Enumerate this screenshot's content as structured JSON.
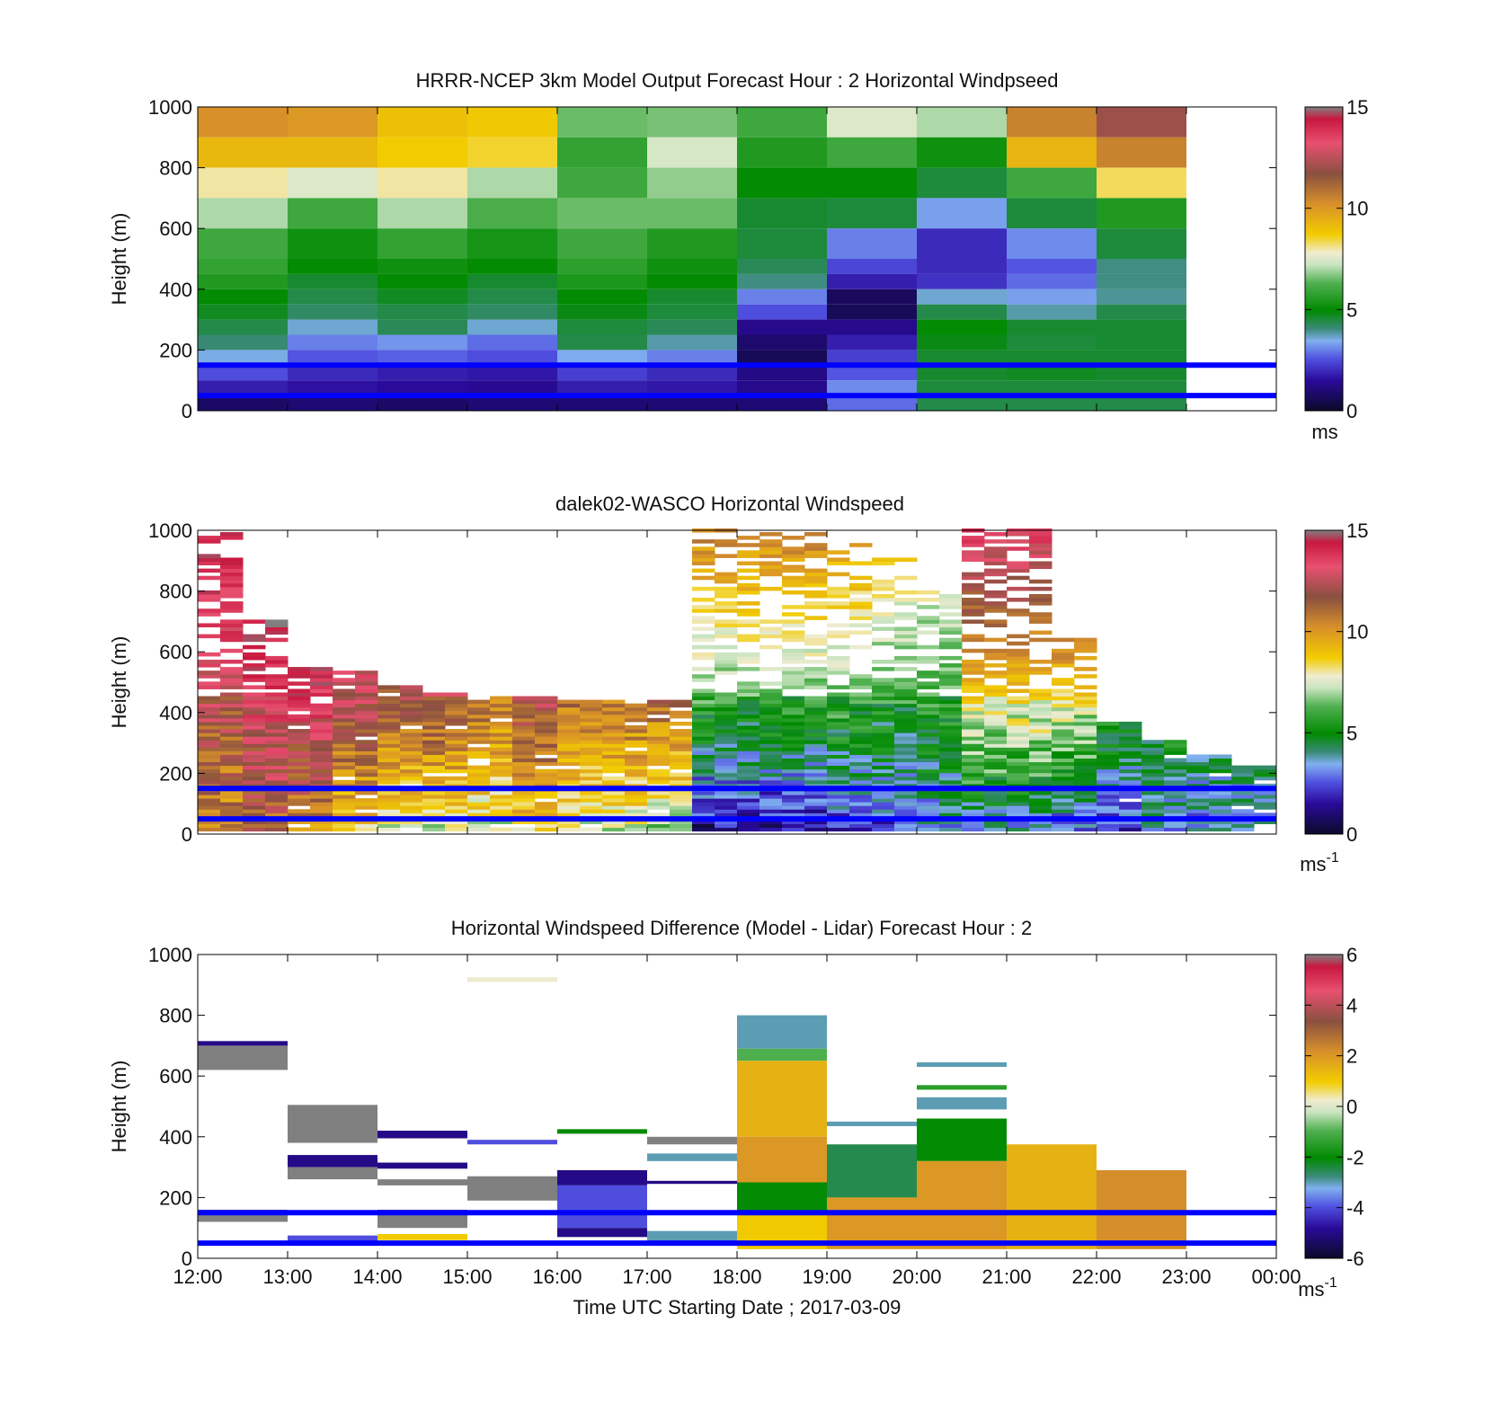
{
  "figure": {
    "xlabel": "Time UTC  Starting Date ; 2017-03-09",
    "x_ticks": [
      "12:00",
      "13:00",
      "14:00",
      "15:00",
      "16:00",
      "17:00",
      "18:00",
      "19:00",
      "20:00",
      "21:00",
      "22:00",
      "23:00",
      "00:00"
    ],
    "overlay_line_color": "#0000ff",
    "overlay_heights_m": [
      150,
      50
    ]
  },
  "chart_data": [
    {
      "type": "heatmap",
      "title": "HRRR-NCEP 3km Model Output   Forecast Hour : 2 Horizontal Windpseed",
      "ylabel": "Height (m)",
      "xlim_hours": [
        12,
        24
      ],
      "ylim": [
        0,
        1000
      ],
      "y_ticks": [
        "0",
        "200",
        "400",
        "600",
        "800",
        "1000"
      ],
      "colorbar": {
        "range": [
          0,
          15
        ],
        "ticks": [
          "0",
          "5",
          "10",
          "15"
        ],
        "unit": "ms"
      },
      "columns_start_hour": [
        12,
        13,
        14,
        15,
        16,
        17,
        18,
        19,
        20,
        21,
        22
      ],
      "column_width_hours": 1,
      "layers": [
        {
          "y0": 900,
          "y1": 1000,
          "values": [
            10.2,
            10.0,
            9.0,
            8.8,
            6.5,
            6.6,
            6.0,
            7.5,
            7.0,
            10.5,
            12.0
          ]
        },
        {
          "y0": 800,
          "y1": 900,
          "values": [
            9.2,
            9.2,
            8.7,
            8.5,
            5.8,
            7.4,
            5.5,
            6.0,
            5.2,
            9.3,
            10.5
          ]
        },
        {
          "y0": 700,
          "y1": 800,
          "values": [
            8.0,
            7.5,
            8.0,
            7.0,
            6.0,
            6.8,
            5.0,
            5.0,
            4.5,
            6.0,
            8.3
          ]
        },
        {
          "y0": 600,
          "y1": 700,
          "values": [
            7.0,
            6.0,
            7.0,
            6.2,
            6.5,
            6.5,
            4.6,
            4.5,
            3.3,
            4.5,
            5.5
          ]
        },
        {
          "y0": 500,
          "y1": 600,
          "values": [
            6.0,
            5.2,
            5.8,
            5.3,
            6.0,
            5.5,
            4.5,
            3.0,
            2.0,
            3.1,
            4.5
          ]
        },
        {
          "y0": 450,
          "y1": 500,
          "values": [
            5.8,
            5.0,
            5.2,
            5.0,
            5.7,
            5.2,
            4.3,
            2.4,
            2.0,
            2.6,
            4.0
          ]
        },
        {
          "y0": 400,
          "y1": 450,
          "values": [
            5.5,
            4.6,
            5.0,
            4.6,
            5.4,
            5.0,
            4.0,
            1.8,
            2.1,
            2.8,
            4.0
          ]
        },
        {
          "y0": 350,
          "y1": 400,
          "values": [
            5.0,
            4.4,
            4.7,
            4.4,
            5.0,
            4.6,
            3.0,
            0.7,
            3.6,
            3.3,
            3.9
          ]
        },
        {
          "y0": 300,
          "y1": 350,
          "values": [
            4.7,
            4.2,
            4.4,
            4.2,
            4.8,
            4.5,
            2.5,
            0.6,
            4.4,
            3.8,
            4.4
          ]
        },
        {
          "y0": 250,
          "y1": 300,
          "values": [
            4.4,
            3.6,
            4.3,
            3.6,
            4.5,
            4.3,
            1.3,
            1.3,
            5.0,
            4.6,
            4.6
          ]
        },
        {
          "y0": 200,
          "y1": 250,
          "values": [
            4.1,
            3.0,
            3.2,
            2.8,
            4.4,
            3.8,
            0.9,
            1.8,
            4.8,
            4.5,
            4.6
          ]
        },
        {
          "y0": 150,
          "y1": 200,
          "values": [
            3.5,
            2.6,
            2.7,
            2.5,
            3.4,
            3.0,
            0.6,
            2.3,
            4.6,
            4.6,
            4.6
          ]
        },
        {
          "y0": 100,
          "y1": 150,
          "values": [
            2.5,
            2.0,
            1.8,
            1.7,
            2.3,
            2.0,
            1.2,
            2.6,
            4.6,
            4.7,
            4.6
          ]
        },
        {
          "y0": 50,
          "y1": 100,
          "values": [
            1.8,
            1.6,
            1.5,
            1.4,
            1.8,
            1.7,
            1.3,
            3.1,
            4.5,
            4.5,
            4.5
          ]
        },
        {
          "y0": 0,
          "y1": 50,
          "values": [
            0.8,
            1.0,
            0.8,
            1.0,
            1.0,
            1.0,
            1.0,
            2.8,
            4.4,
            4.4,
            4.4
          ]
        }
      ]
    },
    {
      "type": "heatmap",
      "title": "dalek02-WASCO  Horizontal Windspeed",
      "ylabel": "Height (m)",
      "xlim_hours": [
        12,
        24
      ],
      "ylim": [
        0,
        1000
      ],
      "y_ticks": [
        "0",
        "200",
        "400",
        "600",
        "800",
        "1000"
      ],
      "colorbar": {
        "range": [
          0,
          15
        ],
        "ticks": [
          "0",
          "5",
          "10",
          "15"
        ],
        "unit": "ms",
        "unit_exponent": "-1"
      },
      "profiles": [
        {
          "t": 12.25,
          "top": 1000,
          "low": 10,
          "high": 14
        },
        {
          "t": 12.75,
          "top": 700,
          "low": 11,
          "high": 14
        },
        {
          "t": 13.25,
          "top": 560,
          "low": 10,
          "high": 14
        },
        {
          "t": 13.75,
          "top": 530,
          "low": 8,
          "high": 13
        },
        {
          "t": 14.25,
          "top": 480,
          "low": 7,
          "high": 12
        },
        {
          "t": 14.75,
          "top": 460,
          "low": 7,
          "high": 12
        },
        {
          "t": 15.25,
          "top": 450,
          "low": 7,
          "high": 11
        },
        {
          "t": 15.75,
          "top": 450,
          "low": 8,
          "high": 12
        },
        {
          "t": 16.25,
          "top": 440,
          "low": 7,
          "high": 11
        },
        {
          "t": 16.75,
          "top": 440,
          "low": 7,
          "high": 11
        },
        {
          "t": 17.25,
          "top": 440,
          "low": 6,
          "high": 11
        },
        {
          "t": 17.75,
          "top": 1000,
          "low": 1,
          "high": 10
        },
        {
          "t": 18.25,
          "top": 1000,
          "low": 1,
          "high": 10
        },
        {
          "t": 18.75,
          "top": 1000,
          "low": 1,
          "high": 10
        },
        {
          "t": 19.25,
          "top": 950,
          "low": 2,
          "high": 9
        },
        {
          "t": 19.75,
          "top": 900,
          "low": 2,
          "high": 8
        },
        {
          "t": 20.25,
          "top": 800,
          "low": 3,
          "high": 7
        },
        {
          "t": 20.75,
          "top": 1000,
          "low": 3,
          "high": 13
        },
        {
          "t": 21.25,
          "top": 1000,
          "low": 3,
          "high": 13
        },
        {
          "t": 21.75,
          "top": 640,
          "low": 2,
          "high": 10
        },
        {
          "t": 22.25,
          "top": 360,
          "low": 2,
          "high": 5
        },
        {
          "t": 22.75,
          "top": 300,
          "low": 3,
          "high": 5
        },
        {
          "t": 23.25,
          "top": 260,
          "low": 3,
          "high": 4
        },
        {
          "t": 23.75,
          "top": 220,
          "low": 3,
          "high": 4
        }
      ]
    },
    {
      "type": "heatmap",
      "title": "Horizontal Windspeed Difference (Model - Lidar) Forecast Hour : 2",
      "ylabel": "Height (m)",
      "xlim_hours": [
        12,
        24
      ],
      "ylim": [
        0,
        1000
      ],
      "y_ticks": [
        "0",
        "200",
        "400",
        "600",
        "800",
        "1000"
      ],
      "colorbar": {
        "range": [
          -6,
          6
        ],
        "ticks": [
          "-6",
          "-4",
          "-2",
          "0",
          "2",
          "4",
          "6"
        ],
        "unit": "ms",
        "unit_exponent": "-1"
      },
      "patches": [
        {
          "h0": 12,
          "h1": 13,
          "y0": 620,
          "y1": 700,
          "v": 6
        },
        {
          "h0": 12,
          "h1": 13,
          "y0": 700,
          "y1": 715,
          "v": -5
        },
        {
          "h0": 12,
          "h1": 13,
          "y0": 120,
          "y1": 160,
          "v": 6
        },
        {
          "h0": 13,
          "h1": 14,
          "y0": 380,
          "y1": 505,
          "v": 6
        },
        {
          "h0": 13,
          "h1": 14,
          "y0": 300,
          "y1": 340,
          "v": -5
        },
        {
          "h0": 13,
          "h1": 14,
          "y0": 260,
          "y1": 300,
          "v": 6
        },
        {
          "h0": 13,
          "h1": 14,
          "y0": 50,
          "y1": 75,
          "v": -4
        },
        {
          "h0": 14,
          "h1": 15,
          "y0": 395,
          "y1": 420,
          "v": -5
        },
        {
          "h0": 14,
          "h1": 15,
          "y0": 295,
          "y1": 315,
          "v": -5
        },
        {
          "h0": 14,
          "h1": 15,
          "y0": 240,
          "y1": 260,
          "v": 6
        },
        {
          "h0": 14,
          "h1": 15,
          "y0": 100,
          "y1": 160,
          "v": 6
        },
        {
          "h0": 14,
          "h1": 15,
          "y0": 60,
          "y1": 80,
          "v": 1
        },
        {
          "h0": 15,
          "h1": 16,
          "y0": 910,
          "y1": 925,
          "v": 0.2
        },
        {
          "h0": 15,
          "h1": 16,
          "y0": 375,
          "y1": 390,
          "v": -4
        },
        {
          "h0": 15,
          "h1": 16,
          "y0": 190,
          "y1": 270,
          "v": 6
        },
        {
          "h0": 16,
          "h1": 17,
          "y0": 410,
          "y1": 425,
          "v": -2
        },
        {
          "h0": 16,
          "h1": 17,
          "y0": 240,
          "y1": 290,
          "v": -5
        },
        {
          "h0": 16,
          "h1": 17,
          "y0": 100,
          "y1": 240,
          "v": -4
        },
        {
          "h0": 16,
          "h1": 17,
          "y0": 70,
          "y1": 100,
          "v": -5
        },
        {
          "h0": 17,
          "h1": 18,
          "y0": 375,
          "y1": 400,
          "v": 6
        },
        {
          "h0": 17,
          "h1": 18,
          "y0": 320,
          "y1": 345,
          "v": -3
        },
        {
          "h0": 17,
          "h1": 18,
          "y0": 245,
          "y1": 255,
          "v": -5
        },
        {
          "h0": 17,
          "h1": 18,
          "y0": 50,
          "y1": 90,
          "v": -3
        },
        {
          "h0": 18,
          "h1": 19,
          "y0": 690,
          "y1": 800,
          "v": -3
        },
        {
          "h0": 18,
          "h1": 19,
          "y0": 650,
          "y1": 690,
          "v": -1
        },
        {
          "h0": 18,
          "h1": 19,
          "y0": 400,
          "y1": 650,
          "v": 1.5
        },
        {
          "h0": 18,
          "h1": 19,
          "y0": 250,
          "y1": 400,
          "v": 2
        },
        {
          "h0": 18,
          "h1": 19,
          "y0": 150,
          "y1": 250,
          "v": -2
        },
        {
          "h0": 18,
          "h1": 19,
          "y0": 30,
          "y1": 150,
          "v": 1
        },
        {
          "h0": 19,
          "h1": 20,
          "y0": 435,
          "y1": 450,
          "v": -3
        },
        {
          "h0": 19,
          "h1": 20,
          "y0": 200,
          "y1": 375,
          "v": -2.5
        },
        {
          "h0": 19,
          "h1": 20,
          "y0": 30,
          "y1": 200,
          "v": 2
        },
        {
          "h0": 20,
          "h1": 21,
          "y0": 630,
          "y1": 645,
          "v": -3
        },
        {
          "h0": 20,
          "h1": 21,
          "y0": 555,
          "y1": 570,
          "v": -1.5
        },
        {
          "h0": 20,
          "h1": 21,
          "y0": 490,
          "y1": 530,
          "v": -3
        },
        {
          "h0": 20,
          "h1": 21,
          "y0": 320,
          "y1": 460,
          "v": -2
        },
        {
          "h0": 20,
          "h1": 21,
          "y0": 30,
          "y1": 320,
          "v": 2
        },
        {
          "h0": 21,
          "h1": 22,
          "y0": 30,
          "y1": 375,
          "v": 1.5
        },
        {
          "h0": 22,
          "h1": 23,
          "y0": 30,
          "y1": 290,
          "v": 2.2
        }
      ]
    }
  ]
}
